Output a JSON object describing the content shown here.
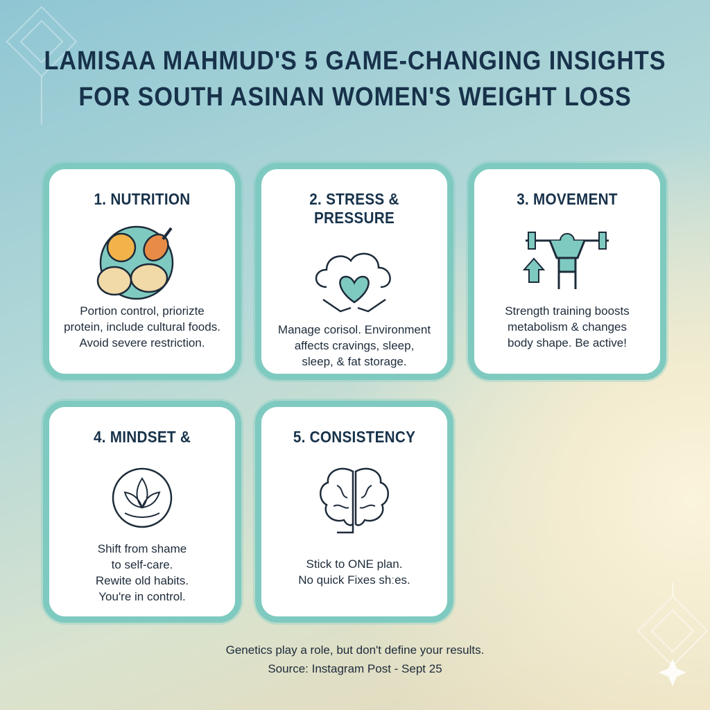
{
  "title": {
    "line1": "LAMISAA MAHMUD'S 5 GAME-CHANGING INSIGHTS",
    "line2": "FOR SOUTH ASINAN WOMEN'S WEIGHT LOSS"
  },
  "cards": [
    {
      "heading": "1. NUTRITION",
      "icon": "food-plate-icon",
      "lines": [
        "Portion control, priorizte",
        "protein, include cultural foods.",
        "Avoid severe restriction."
      ]
    },
    {
      "heading": "2. STRESS & PRESSURE",
      "icon": "cloud-heart-hands-icon",
      "lines": [
        "Manage corisol. Environment",
        "affects cravings, sleep,",
        "sleep, & fat storage."
      ]
    },
    {
      "heading": "3. MOVEMENT",
      "icon": "weightlifter-icon",
      "lines": [
        "Strength training boosts",
        "metabolism & changes",
        "body shape. Be active!"
      ]
    },
    {
      "heading": "4. MINDSET &",
      "icon": "lotus-icon",
      "lines": [
        "Shift from shame",
        "to self-care.",
        "Rewite old habits.",
        "You're in control."
      ]
    },
    {
      "heading": "5. CONSISTENCY",
      "icon": "brain-icon",
      "lines": [
        "Stick to ONE plan.",
        "No quick Fixes shːes."
      ]
    }
  ],
  "footer": {
    "note": "Genetics play a role, but don't define your results.",
    "source": "Source: Instagram Post - Sept 25"
  },
  "colors": {
    "accent": "#7fcac0",
    "title": "#17324a",
    "text": "#1d2b3a"
  }
}
